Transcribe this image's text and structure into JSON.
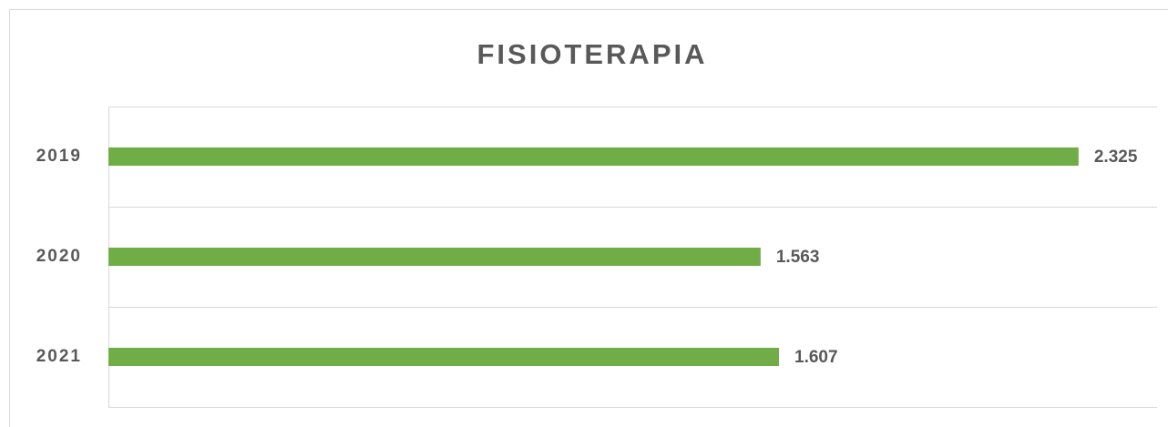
{
  "chart_data": {
    "type": "hbar",
    "title": "FISIOTERAPIA",
    "categories": [
      "2019",
      "2020",
      "2021"
    ],
    "values": [
      2325,
      1563,
      1607
    ],
    "value_labels": [
      "2.325",
      "1.563",
      "1.607"
    ],
    "color": "#70ad47",
    "xlim": [
      0,
      2500
    ]
  }
}
